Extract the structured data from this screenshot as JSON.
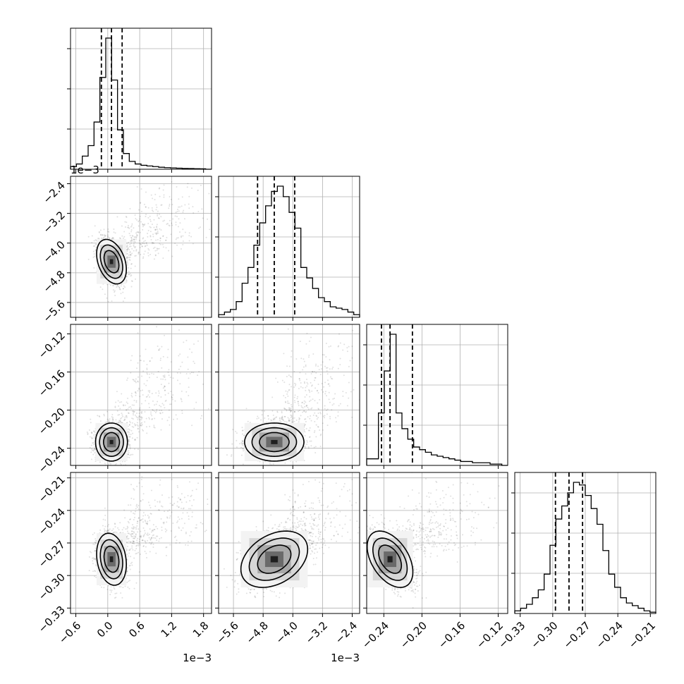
{
  "chart_data": {
    "type": "corner",
    "grid": true,
    "parameters": [
      {
        "index": 0,
        "offset_label": "1e−3",
        "range": [
          -0.7,
          1.95
        ],
        "ticks": [
          -0.6,
          0.0,
          0.6,
          1.2,
          1.8
        ],
        "tick_labels": [
          "−0.6",
          "0.0",
          "0.6",
          "1.2",
          "1.8"
        ],
        "quantiles": [
          -0.12,
          0.07,
          0.27
        ],
        "peak": 0.07,
        "histogram": [
          0.02,
          0.04,
          0.1,
          0.18,
          0.36,
          0.7,
          1.0,
          0.68,
          0.3,
          0.12,
          0.06,
          0.04,
          0.03,
          0.025,
          0.02,
          0.015,
          0.012,
          0.01,
          0.008,
          0.006,
          0.005,
          0.004,
          0.003,
          0.0
        ]
      },
      {
        "index": 1,
        "offset_label": "1e−3",
        "range": [
          -6.0,
          -2.2
        ],
        "ticks": [
          -5.6,
          -4.8,
          -4.0,
          -3.2,
          -2.4
        ],
        "tick_labels": [
          "−5.6",
          "−4.8",
          "−4.0",
          "−3.2",
          "−2.4"
        ],
        "quantiles": [
          -4.95,
          -4.5,
          -3.95
        ],
        "peak": -4.5,
        "histogram": [
          0.02,
          0.04,
          0.06,
          0.12,
          0.26,
          0.38,
          0.55,
          0.72,
          0.85,
          0.96,
          1.0,
          0.92,
          0.8,
          0.68,
          0.38,
          0.3,
          0.22,
          0.15,
          0.12,
          0.08,
          0.07,
          0.06,
          0.04,
          0.02
        ]
      },
      {
        "index": 2,
        "range": [
          -0.258,
          -0.11
        ],
        "ticks": [
          -0.24,
          -0.2,
          -0.16,
          -0.12
        ],
        "tick_labels": [
          "−0.24",
          "−0.20",
          "−0.16",
          "−0.12"
        ],
        "quantiles": [
          -0.2425,
          -0.2335,
          -0.21
        ],
        "peak": -0.2335,
        "histogram": [
          0.05,
          0.05,
          0.4,
          0.72,
          1.0,
          0.4,
          0.28,
          0.2,
          0.14,
          0.12,
          0.1,
          0.08,
          0.07,
          0.06,
          0.05,
          0.04,
          0.03,
          0.03,
          0.02,
          0.02,
          0.02,
          0.01,
          0.01,
          0.0
        ]
      },
      {
        "index": 3,
        "range": [
          -0.335,
          -0.205
        ],
        "ticks": [
          -0.33,
          -0.3,
          -0.27,
          -0.24,
          -0.21
        ],
        "tick_labels": [
          "−0.33",
          "−0.30",
          "−0.27",
          "−0.24",
          "−0.21"
        ],
        "quantiles": [
          -0.2975,
          -0.285,
          -0.2725
        ],
        "peak": -0.285,
        "histogram": [
          0.02,
          0.04,
          0.07,
          0.12,
          0.18,
          0.3,
          0.52,
          0.72,
          0.82,
          0.92,
          1.0,
          0.98,
          0.9,
          0.8,
          0.68,
          0.48,
          0.3,
          0.2,
          0.12,
          0.08,
          0.06,
          0.04,
          0.02,
          0.01
        ]
      }
    ],
    "pair_sigmas": {
      "1-0": {
        "sx": 0.14,
        "sy": 0.3,
        "rho": -0.35
      },
      "2-0": {
        "sx": 0.15,
        "sy": 0.01,
        "rho": 0.0
      },
      "2-1": {
        "sx": 0.4,
        "sy": 0.01,
        "rho": 0.0
      },
      "3-0": {
        "sx": 0.14,
        "sy": 0.012,
        "rho": -0.2
      },
      "3-1": {
        "sx": 0.45,
        "sy": 0.013,
        "rho": 0.35
      },
      "3-2": {
        "sx": 0.012,
        "sy": 0.013,
        "rho": -0.45
      }
    }
  }
}
